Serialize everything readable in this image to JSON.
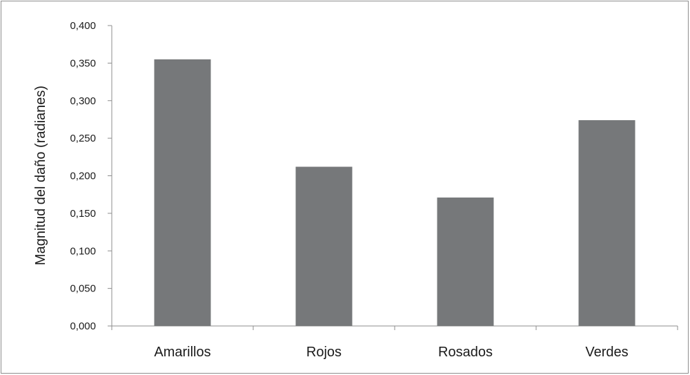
{
  "chart_data": {
    "type": "bar",
    "title": "",
    "xlabel": "",
    "ylabel": "Magnitud del daño (radianes)",
    "categories": [
      "Amarillos",
      "Rojos",
      "Rosados",
      "Verdes"
    ],
    "values": [
      0.355,
      0.212,
      0.171,
      0.274
    ],
    "ylim": [
      0,
      0.4
    ],
    "yticks": [
      0,
      0.05,
      0.1,
      0.15,
      0.2,
      0.25,
      0.3,
      0.35,
      0.4
    ],
    "ytick_labels": [
      "0,000",
      "0,050",
      "0,100",
      "0,150",
      "0,200",
      "0,250",
      "0,300",
      "0,350",
      "0,400"
    ],
    "grid": false,
    "legend": "none",
    "bar_color": "#76787a",
    "axis_color": "#8c8c8c"
  }
}
